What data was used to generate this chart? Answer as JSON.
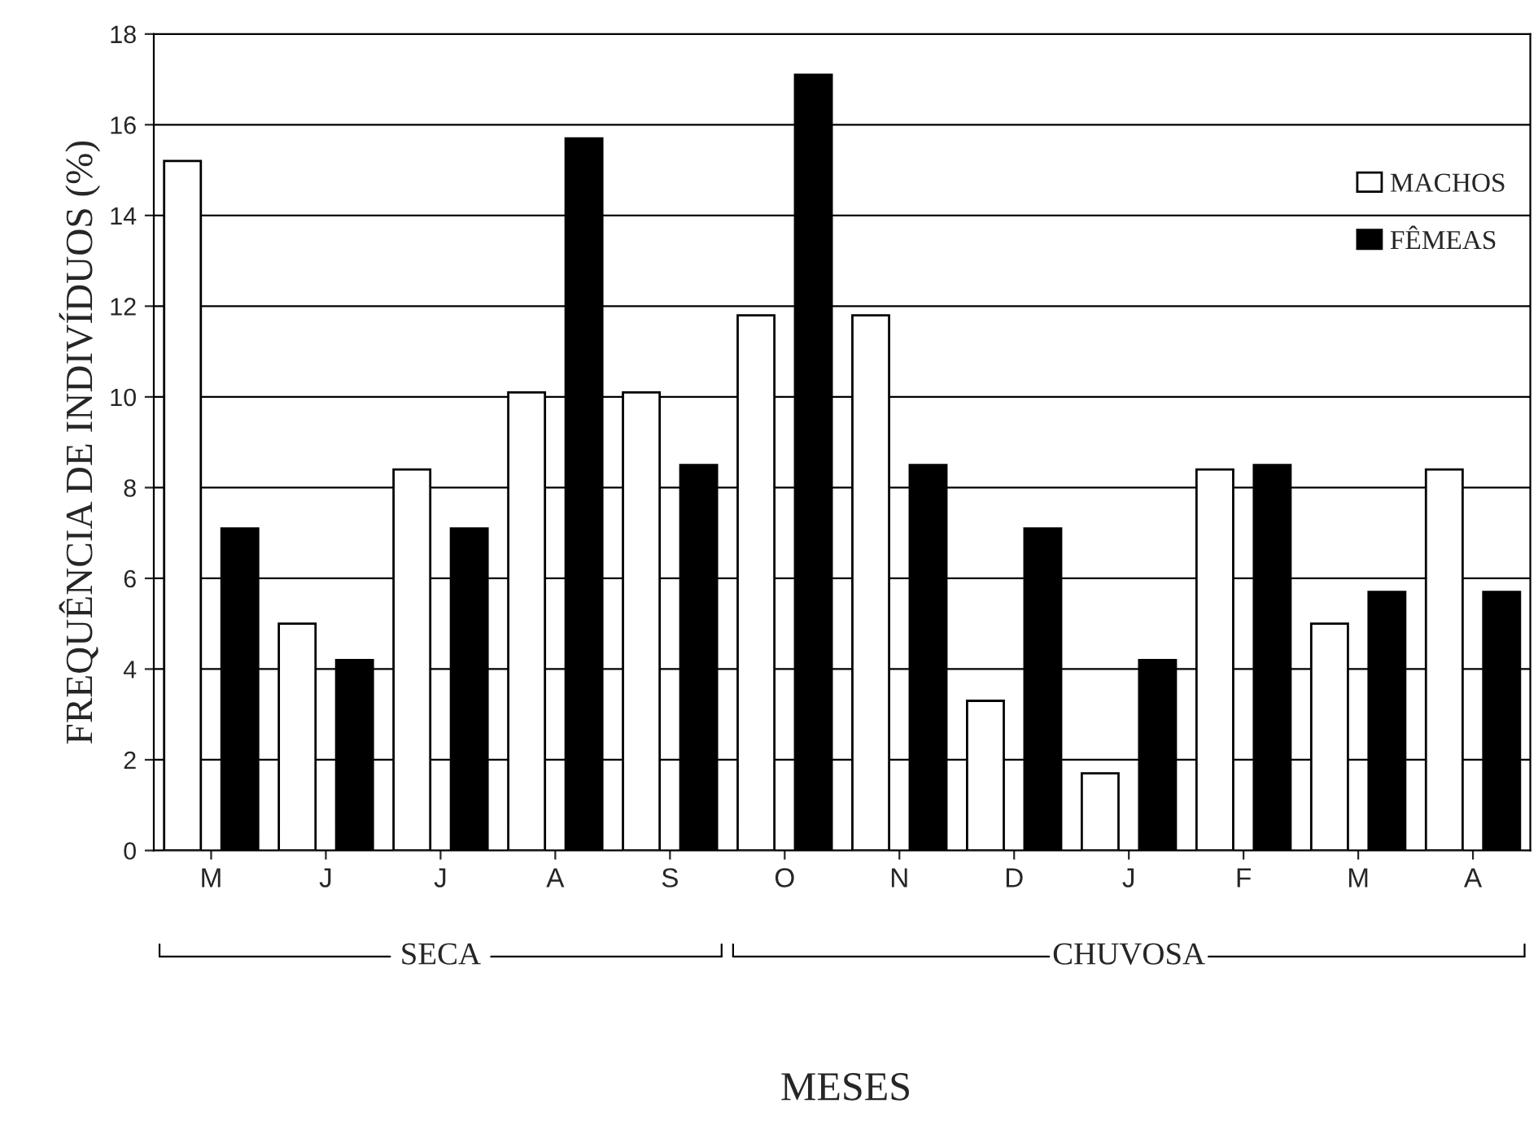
{
  "chart_data": {
    "type": "bar",
    "ylabel": "FREQUÊNCIA DE INDIVÍDUOS (%)",
    "xlabel": "MESES",
    "categories": [
      "M",
      "J",
      "J",
      "A",
      "S",
      "O",
      "N",
      "D",
      "J",
      "F",
      "M",
      "A"
    ],
    "series": [
      {
        "name": "MACHOS",
        "color": "#ffffff",
        "values": [
          15.2,
          5.0,
          8.4,
          10.1,
          10.1,
          11.8,
          11.8,
          3.3,
          1.7,
          8.4,
          5.0,
          8.4
        ]
      },
      {
        "name": "FÊMEAS",
        "color": "#000000",
        "values": [
          7.1,
          4.2,
          7.1,
          15.7,
          8.5,
          17.1,
          8.5,
          7.1,
          4.2,
          8.5,
          5.7,
          5.7
        ]
      }
    ],
    "ylim": [
      0,
      18
    ],
    "yticks": [
      0,
      2,
      4,
      6,
      8,
      10,
      12,
      14,
      16,
      18
    ],
    "grid": "y",
    "legend": "right",
    "annotations": [
      "SECA",
      "CHUVOSA"
    ]
  }
}
